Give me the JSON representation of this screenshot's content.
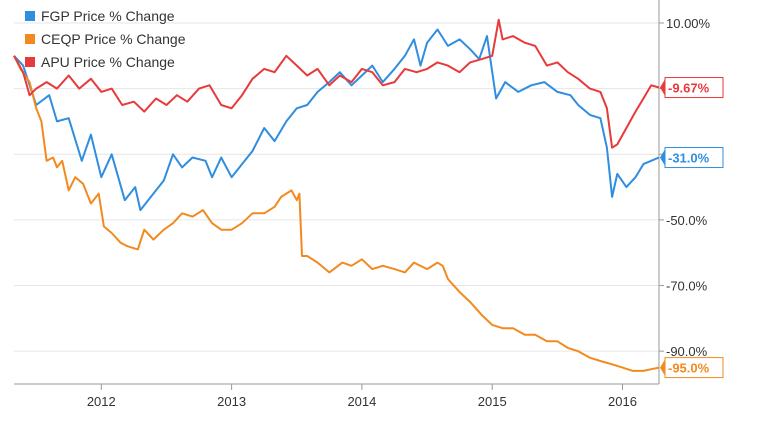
{
  "chart_data": {
    "type": "line",
    "x_unit": "year",
    "xlim": [
      2011.33,
      2016.28
    ],
    "ylim": [
      -100,
      17
    ],
    "grid": true,
    "legend_position": "top-left",
    "x_ticks": [
      {
        "value": 2012,
        "label": "2012"
      },
      {
        "value": 2013,
        "label": "2013"
      },
      {
        "value": 2014,
        "label": "2014"
      },
      {
        "value": 2015,
        "label": "2015"
      },
      {
        "value": 2016,
        "label": "2016"
      }
    ],
    "y_ticks": [
      {
        "value": 10,
        "label": "10.00%"
      },
      {
        "value": -10,
        "label": ""
      },
      {
        "value": -30,
        "label": ""
      },
      {
        "value": -50,
        "label": "-50.0%"
      },
      {
        "value": -70,
        "label": "-70.0%"
      },
      {
        "value": -90,
        "label": "-90.0%"
      }
    ],
    "series": [
      {
        "name": "FGP Price % Change",
        "color": "#2f8ee0",
        "end_label": "-31.0%",
        "points": [
          [
            2011.33,
            0
          ],
          [
            2011.4,
            -3
          ],
          [
            2011.5,
            -15
          ],
          [
            2011.6,
            -12
          ],
          [
            2011.66,
            -20
          ],
          [
            2011.75,
            -19
          ],
          [
            2011.85,
            -32
          ],
          [
            2011.92,
            -24
          ],
          [
            2012.0,
            -37
          ],
          [
            2012.08,
            -30
          ],
          [
            2012.18,
            -44
          ],
          [
            2012.26,
            -40
          ],
          [
            2012.3,
            -47
          ],
          [
            2012.4,
            -42
          ],
          [
            2012.48,
            -38
          ],
          [
            2012.55,
            -30
          ],
          [
            2012.62,
            -34
          ],
          [
            2012.7,
            -31
          ],
          [
            2012.8,
            -32
          ],
          [
            2012.85,
            -37
          ],
          [
            2012.92,
            -31
          ],
          [
            2013.0,
            -37
          ],
          [
            2013.08,
            -33
          ],
          [
            2013.16,
            -29
          ],
          [
            2013.25,
            -22
          ],
          [
            2013.33,
            -26
          ],
          [
            2013.42,
            -20
          ],
          [
            2013.5,
            -16
          ],
          [
            2013.58,
            -15
          ],
          [
            2013.66,
            -11
          ],
          [
            2013.75,
            -8
          ],
          [
            2013.83,
            -5
          ],
          [
            2013.92,
            -9
          ],
          [
            2014.0,
            -6
          ],
          [
            2014.08,
            -3
          ],
          [
            2014.16,
            -8
          ],
          [
            2014.25,
            -4
          ],
          [
            2014.33,
            0
          ],
          [
            2014.4,
            5
          ],
          [
            2014.45,
            -3
          ],
          [
            2014.5,
            4
          ],
          [
            2014.58,
            8
          ],
          [
            2014.66,
            3
          ],
          [
            2014.75,
            5
          ],
          [
            2014.83,
            2
          ],
          [
            2014.9,
            -1
          ],
          [
            2014.96,
            6
          ],
          [
            2015.03,
            -13
          ],
          [
            2015.1,
            -8
          ],
          [
            2015.2,
            -11
          ],
          [
            2015.3,
            -9
          ],
          [
            2015.4,
            -8
          ],
          [
            2015.5,
            -11
          ],
          [
            2015.6,
            -12
          ],
          [
            2015.66,
            -15
          ],
          [
            2015.75,
            -18
          ],
          [
            2015.83,
            -19
          ],
          [
            2015.88,
            -28
          ],
          [
            2015.92,
            -43
          ],
          [
            2015.96,
            -36
          ],
          [
            2016.03,
            -40
          ],
          [
            2016.1,
            -37
          ],
          [
            2016.16,
            -33
          ],
          [
            2016.22,
            -32
          ],
          [
            2016.28,
            -31
          ]
        ]
      },
      {
        "name": "CEQP Price % Change",
        "color": "#f28a1f",
        "end_label": "-95.0%",
        "points": [
          [
            2011.33,
            0
          ],
          [
            2011.38,
            -4
          ],
          [
            2011.45,
            -8
          ],
          [
            2011.5,
            -16
          ],
          [
            2011.54,
            -20
          ],
          [
            2011.58,
            -32
          ],
          [
            2011.63,
            -31
          ],
          [
            2011.66,
            -34
          ],
          [
            2011.7,
            -32
          ],
          [
            2011.75,
            -41
          ],
          [
            2011.8,
            -37
          ],
          [
            2011.86,
            -39
          ],
          [
            2011.92,
            -45
          ],
          [
            2011.98,
            -42
          ],
          [
            2012.02,
            -52
          ],
          [
            2012.08,
            -54
          ],
          [
            2012.15,
            -57
          ],
          [
            2012.2,
            -58
          ],
          [
            2012.28,
            -59
          ],
          [
            2012.33,
            -53
          ],
          [
            2012.4,
            -56
          ],
          [
            2012.48,
            -53
          ],
          [
            2012.55,
            -51
          ],
          [
            2012.62,
            -48
          ],
          [
            2012.7,
            -49
          ],
          [
            2012.78,
            -47
          ],
          [
            2012.85,
            -51
          ],
          [
            2012.92,
            -53
          ],
          [
            2013.0,
            -53
          ],
          [
            2013.08,
            -51
          ],
          [
            2013.16,
            -48
          ],
          [
            2013.25,
            -48
          ],
          [
            2013.33,
            -46
          ],
          [
            2013.38,
            -43
          ],
          [
            2013.42,
            -42
          ],
          [
            2013.46,
            -41
          ],
          [
            2013.5,
            -44
          ],
          [
            2013.52,
            -42
          ],
          [
            2013.54,
            -61
          ],
          [
            2013.58,
            -61
          ],
          [
            2013.66,
            -63
          ],
          [
            2013.75,
            -66
          ],
          [
            2013.85,
            -63
          ],
          [
            2013.92,
            -64
          ],
          [
            2014.0,
            -62
          ],
          [
            2014.08,
            -65
          ],
          [
            2014.16,
            -64
          ],
          [
            2014.25,
            -65
          ],
          [
            2014.33,
            -66
          ],
          [
            2014.4,
            -63
          ],
          [
            2014.5,
            -65
          ],
          [
            2014.58,
            -63
          ],
          [
            2014.62,
            -64
          ],
          [
            2014.66,
            -68
          ],
          [
            2014.75,
            -72
          ],
          [
            2014.83,
            -75
          ],
          [
            2014.92,
            -79
          ],
          [
            2015.0,
            -82
          ],
          [
            2015.08,
            -83
          ],
          [
            2015.16,
            -83
          ],
          [
            2015.25,
            -85
          ],
          [
            2015.33,
            -85
          ],
          [
            2015.42,
            -87
          ],
          [
            2015.5,
            -87
          ],
          [
            2015.58,
            -89
          ],
          [
            2015.66,
            -90
          ],
          [
            2015.75,
            -92
          ],
          [
            2015.83,
            -93
          ],
          [
            2015.92,
            -94
          ],
          [
            2016.0,
            -95
          ],
          [
            2016.08,
            -96
          ],
          [
            2016.16,
            -96
          ],
          [
            2016.22,
            -95.5
          ],
          [
            2016.28,
            -95
          ]
        ]
      },
      {
        "name": "APU Price % Change",
        "color": "#e8393b",
        "end_label": "-9.67%",
        "points": [
          [
            2011.33,
            0
          ],
          [
            2011.4,
            -5
          ],
          [
            2011.45,
            -12
          ],
          [
            2011.5,
            -10
          ],
          [
            2011.58,
            -8
          ],
          [
            2011.66,
            -10
          ],
          [
            2011.75,
            -6
          ],
          [
            2011.83,
            -10
          ],
          [
            2011.92,
            -7
          ],
          [
            2012.0,
            -11
          ],
          [
            2012.08,
            -10
          ],
          [
            2012.16,
            -15
          ],
          [
            2012.25,
            -14
          ],
          [
            2012.33,
            -17
          ],
          [
            2012.42,
            -13
          ],
          [
            2012.5,
            -15
          ],
          [
            2012.58,
            -12
          ],
          [
            2012.66,
            -14
          ],
          [
            2012.75,
            -10
          ],
          [
            2012.83,
            -9
          ],
          [
            2012.92,
            -15
          ],
          [
            2013.0,
            -16
          ],
          [
            2013.08,
            -12
          ],
          [
            2013.16,
            -7
          ],
          [
            2013.25,
            -4
          ],
          [
            2013.33,
            -5
          ],
          [
            2013.42,
            0
          ],
          [
            2013.5,
            -3
          ],
          [
            2013.58,
            -6
          ],
          [
            2013.66,
            -4
          ],
          [
            2013.75,
            -9
          ],
          [
            2013.83,
            -6
          ],
          [
            2013.92,
            -8
          ],
          [
            2014.0,
            -4
          ],
          [
            2014.08,
            -5
          ],
          [
            2014.16,
            -9
          ],
          [
            2014.25,
            -8
          ],
          [
            2014.33,
            -4
          ],
          [
            2014.42,
            -5
          ],
          [
            2014.5,
            -4
          ],
          [
            2014.58,
            -2
          ],
          [
            2014.66,
            -3
          ],
          [
            2014.75,
            -5
          ],
          [
            2014.83,
            -2
          ],
          [
            2014.92,
            -1
          ],
          [
            2015.0,
            0
          ],
          [
            2015.05,
            11
          ],
          [
            2015.08,
            5
          ],
          [
            2015.16,
            6
          ],
          [
            2015.25,
            4
          ],
          [
            2015.33,
            3
          ],
          [
            2015.42,
            -3
          ],
          [
            2015.5,
            -2
          ],
          [
            2015.58,
            -5
          ],
          [
            2015.66,
            -7
          ],
          [
            2015.75,
            -10
          ],
          [
            2015.83,
            -11
          ],
          [
            2015.88,
            -16
          ],
          [
            2015.92,
            -28
          ],
          [
            2015.96,
            -27
          ],
          [
            2016.03,
            -22
          ],
          [
            2016.1,
            -17
          ],
          [
            2016.16,
            -13
          ],
          [
            2016.22,
            -9
          ],
          [
            2016.28,
            -9.67
          ]
        ]
      }
    ]
  }
}
